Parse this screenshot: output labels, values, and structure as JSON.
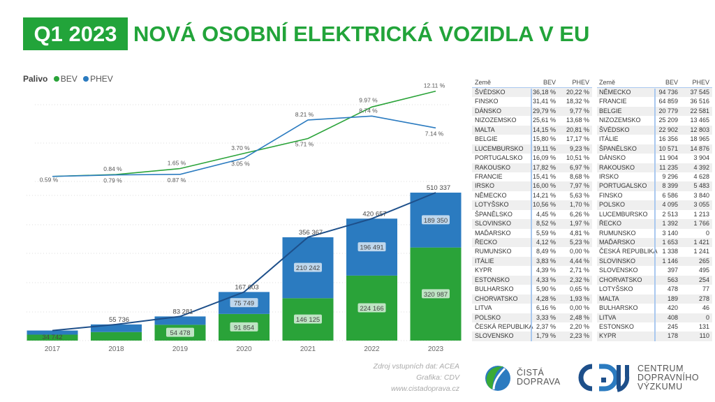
{
  "header": {
    "badge": "Q1 2023",
    "title": "NOVÁ OSOBNÍ ELEKTRICKÁ VOZIDLA V EU"
  },
  "colors": {
    "bev": "#2aa339",
    "phev": "#2b7bc0",
    "total": "#1d4f8a",
    "title": "#22a43a"
  },
  "chart_data": [
    {
      "type": "line",
      "legend_title": "Palivo",
      "legend": [
        "BEV",
        "PHEV"
      ],
      "legend_placement": "top-left",
      "categories": [
        "2017",
        "2018",
        "2019",
        "2020",
        "2021",
        "2022",
        "2023"
      ],
      "series": [
        {
          "name": "BEV",
          "values": [
            0.59,
            0.84,
            1.65,
            3.7,
            5.71,
            9.97,
            12.11
          ],
          "labels": [
            "0.59 %",
            "0.84 %",
            "1.65 %",
            "3.70 %",
            "5.71 %",
            "9.97 %",
            "12.11 %"
          ]
        },
        {
          "name": "PHEV",
          "values": [
            0.59,
            0.79,
            0.87,
            3.05,
            8.21,
            8.74,
            7.14
          ],
          "labels": [
            "",
            "0.79 %",
            "0.87 %",
            "3.05 %",
            "8.21 %",
            "8.74 %",
            "7.14 %"
          ]
        }
      ],
      "grid": true
    },
    {
      "type": "bar",
      "stacked": true,
      "categories": [
        "2017",
        "2018",
        "2019",
        "2020",
        "2021",
        "2022",
        "2023"
      ],
      "series": [
        {
          "name": "BEV",
          "values": [
            20500,
            29500,
            54478,
            91854,
            146125,
            224166,
            320987
          ],
          "labels": [
            "",
            "",
            "54 478",
            "91 854",
            "146 125",
            "224 166",
            "320 987"
          ]
        },
        {
          "name": "PHEV",
          "values": [
            14242,
            26236,
            28803,
            75749,
            210242,
            196491,
            189350
          ],
          "labels": [
            "",
            "",
            "",
            "75 749",
            "210 242",
            "196 491",
            "189 350"
          ]
        }
      ],
      "totals": [
        34742,
        55736,
        83281,
        167603,
        356367,
        420657,
        510337
      ],
      "total_labels": [
        "34 742",
        "55 736",
        "83 281",
        "167 603",
        "356 367",
        "420 657",
        "510 337"
      ],
      "grid": true
    }
  ],
  "table_share": {
    "headers": [
      "Země",
      "BEV",
      "PHEV"
    ],
    "rows": [
      [
        "ŠVÉDSKO",
        "36,18 %",
        "20,22 %"
      ],
      [
        "FINSKO",
        "31,41 %",
        "18,32 %"
      ],
      [
        "DÁNSKO",
        "29,79 %",
        "9,77 %"
      ],
      [
        "NIZOZEMSKO",
        "25,61 %",
        "13,68 %"
      ],
      [
        "MALTA",
        "14,15 %",
        "20,81 %"
      ],
      [
        "BELGIE",
        "15,80 %",
        "17,17 %"
      ],
      [
        "LUCEMBURSKO",
        "19,11 %",
        "9,23 %"
      ],
      [
        "PORTUGALSKO",
        "16,09 %",
        "10,51 %"
      ],
      [
        "RAKOUSKO",
        "17,82 %",
        "6,97 %"
      ],
      [
        "FRANCIE",
        "15,41 %",
        "8,68 %"
      ],
      [
        "IRSKO",
        "16,00 %",
        "7,97 %"
      ],
      [
        "NĚMECKO",
        "14,21 %",
        "5,63 %"
      ],
      [
        "LOTYŠSKO",
        "10,56 %",
        "1,70 %"
      ],
      [
        "ŠPANĚLSKO",
        "4,45 %",
        "6,26 %"
      ],
      [
        "SLOVINSKO",
        "8,52 %",
        "1,97 %"
      ],
      [
        "MAĎARSKO",
        "5,59 %",
        "4,81 %"
      ],
      [
        "ŘECKO",
        "4,12 %",
        "5,23 %"
      ],
      [
        "RUMUNSKO",
        "8,49 %",
        "0,00 %"
      ],
      [
        "ITÁLIE",
        "3,83 %",
        "4,44 %"
      ],
      [
        "KYPR",
        "4,39 %",
        "2,71 %"
      ],
      [
        "ESTONSKO",
        "4,33 %",
        "2,32 %"
      ],
      [
        "BULHARSKO",
        "5,90 %",
        "0,65 %"
      ],
      [
        "CHORVATSKO",
        "4,28 %",
        "1,93 %"
      ],
      [
        "LITVA",
        "6,16 %",
        "0,00 %"
      ],
      [
        "POLSKO",
        "3,33 %",
        "2,48 %"
      ],
      [
        "ČESKÁ REPUBLIKA",
        "2,37 %",
        "2,20 %"
      ],
      [
        "SLOVENSKO",
        "1,79 %",
        "2,23 %"
      ]
    ]
  },
  "table_count": {
    "headers": [
      "Země",
      "BEV",
      "PHEV"
    ],
    "rows": [
      [
        "NĚMECKO",
        "94 736",
        "37 545"
      ],
      [
        "FRANCIE",
        "64 859",
        "36 516"
      ],
      [
        "BELGIE",
        "20 779",
        "22 581"
      ],
      [
        "NIZOZEMSKO",
        "25 209",
        "13 465"
      ],
      [
        "ŠVÉDSKO",
        "22 902",
        "12 803"
      ],
      [
        "ITÁLIE",
        "16 356",
        "18 965"
      ],
      [
        "ŠPANĚLSKO",
        "10 571",
        "14 876"
      ],
      [
        "DÁNSKO",
        "11 904",
        "3 904"
      ],
      [
        "RAKOUSKO",
        "11 235",
        "4 392"
      ],
      [
        "IRSKO",
        "9 296",
        "4 628"
      ],
      [
        "PORTUGALSKO",
        "8 399",
        "5 483"
      ],
      [
        "FINSKO",
        "6 586",
        "3 840"
      ],
      [
        "POLSKO",
        "4 095",
        "3 055"
      ],
      [
        "LUCEMBURSKO",
        "2 513",
        "1 213"
      ],
      [
        "ŘECKO",
        "1 392",
        "1 766"
      ],
      [
        "RUMUNSKO",
        "3 140",
        "0"
      ],
      [
        "MAĎARSKO",
        "1 653",
        "1 421"
      ],
      [
        "ČESKÁ REPUBLIKA",
        "1 338",
        "1 241"
      ],
      [
        "SLOVINSKO",
        "1 146",
        "265"
      ],
      [
        "SLOVENSKO",
        "397",
        "495"
      ],
      [
        "CHORVATSKO",
        "563",
        "254"
      ],
      [
        "LOTYŠSKO",
        "478",
        "77"
      ],
      [
        "MALTA",
        "189",
        "278"
      ],
      [
        "BULHARSKO",
        "420",
        "46"
      ],
      [
        "LITVA",
        "408",
        "0"
      ],
      [
        "ESTONSKO",
        "245",
        "131"
      ],
      [
        "KYPR",
        "178",
        "110"
      ]
    ]
  },
  "footer": {
    "source": "Zdroj vstupních dat: ACEA",
    "graphics": "Grafika: CDV",
    "web": "www.cistadoprava.cz",
    "logo1": "ČISTÁ DOPRAVA",
    "logo1_lines": [
      "ČISTÁ",
      "DOPRAVA"
    ],
    "logo2": "CENTRUM DOPRAVNÍHO VÝZKUMU",
    "logo2_lines": [
      "CENTRUM",
      "DOPRAVNÍHO",
      "VÝZKUMU"
    ]
  }
}
